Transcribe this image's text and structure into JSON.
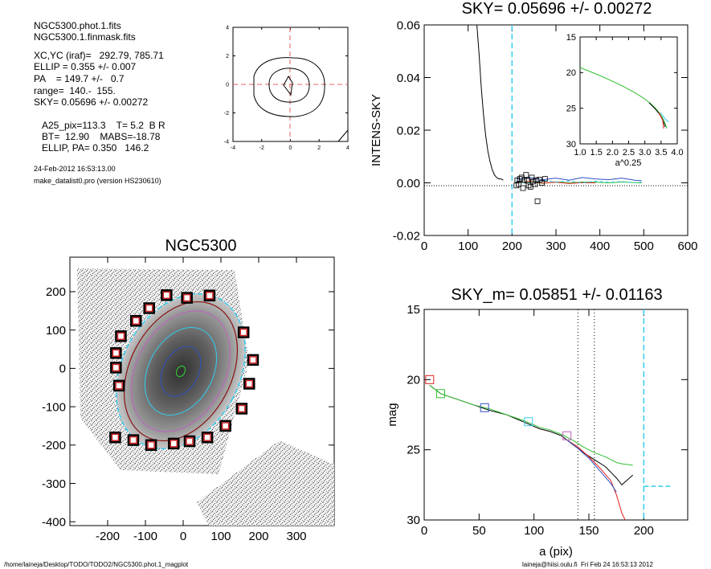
{
  "info": {
    "line1": "NGC5300.phot.1.fits",
    "line2": "NGC5300.1.finmask.fits",
    "line3": "XC,YC (iraf)=   292.79, 785.71",
    "line4": "ELLIP = 0.355 +/- 0.007",
    "line5": "PA    = 149.7 +/-   0.7",
    "line6": "range=  140.-  155.",
    "line7": "SKY= 0.05696 +/- 0.00272",
    "line8": "A25_pix=113.3    T= 5.2  B R",
    "line9": "BT=  12.90    MABS=-18.78",
    "line10": "ELLIP, PA= 0.350   146.2",
    "date": "24-Feb-2012 16:53:13.00",
    "version": "make_datalist0.pro (version HS230610)"
  },
  "footer": {
    "path": "/home/laineja/Desktop/TODO/TODO2/NGC5300.phot.1_magplot",
    "stamp": "laineja@hiisi.oulu.fi  Fri Feb 24 16:53:13 2012"
  },
  "colors": {
    "cyan_dash": "#33ccee",
    "red_dash": "#e06060",
    "blue": "#3050c0",
    "green": "#30c030",
    "red": "#e02020"
  },
  "chart_data": [
    {
      "type": "line",
      "name": "small contour plot",
      "title": "",
      "xlim": [
        -4,
        4
      ],
      "ylim": [
        -4,
        4
      ],
      "xticks": [
        "-4",
        "-2",
        "0",
        "2",
        "4"
      ],
      "yticks": [
        "-4",
        "-2",
        "0",
        "2",
        "4"
      ]
    },
    {
      "type": "line",
      "title": "SKY= 0.05696 +/- 0.00272",
      "xlabel": "",
      "ylabel": "INTENS-SKY",
      "xlim": [
        0,
        600
      ],
      "ylim": [
        -0.02,
        0.06
      ],
      "xticks": [
        "0",
        "100",
        "200",
        "300",
        "400",
        "500",
        "600"
      ],
      "yticks": [
        "-0.02",
        "0.00",
        "0.02",
        "0.04",
        "0.06"
      ],
      "series": [
        {
          "color": "#000000",
          "x": [
            120,
            125,
            130,
            135,
            140,
            145,
            150,
            155,
            160,
            165,
            170,
            175,
            180
          ],
          "y": [
            0.062,
            0.049,
            0.036,
            0.026,
            0.018,
            0.012,
            0.008,
            0.005,
            0.003,
            0.002,
            0.0015,
            0.0015,
            0.001
          ]
        },
        {
          "color": "#3050c0",
          "x": [
            210,
            240,
            270,
            300,
            330,
            360,
            390,
            420,
            450,
            480,
            495
          ],
          "y": [
            0.0015,
            0.002,
            0.0012,
            0.0018,
            0.001,
            0.002,
            0.0015,
            0.0012,
            0.0018,
            0.001,
            0.0008
          ]
        },
        {
          "color": "#30c030",
          "x": [
            210,
            240,
            270,
            300,
            330,
            360,
            390,
            420,
            450,
            480,
            495
          ],
          "y": [
            0.0,
            0.0005,
            -0.0002,
            0.0004,
            0.0,
            0.0003,
            0.0002,
            0.0,
            0.0003,
            0.0001,
            0.0
          ]
        },
        {
          "color": "#e02020",
          "x": [
            210,
            240,
            270,
            300,
            330,
            360,
            390
          ],
          "y": [
            0.0002,
            0.0006,
            -0.0001,
            0.0002,
            -0.0002,
            0.0001,
            0.0
          ]
        },
        {
          "color": "#33ccee",
          "x": [
            210,
            240,
            270,
            300,
            330,
            360,
            390,
            420,
            450,
            480,
            495
          ],
          "y": [
            0.0008,
            0.0,
            0.001,
            0.0003,
            0.0007,
            0.0,
            0.0006,
            0.0002,
            0.0005,
            0.0001,
            0.0003
          ]
        }
      ],
      "points": [
        [
          210,
          -0.001
        ],
        [
          212,
          0.001
        ],
        [
          215,
          -0.0005
        ],
        [
          218,
          0.0015
        ],
        [
          222,
          0.002
        ],
        [
          225,
          -0.002
        ],
        [
          228,
          0.001
        ],
        [
          232,
          0.003
        ],
        [
          235,
          0.0008
        ],
        [
          238,
          -0.001
        ],
        [
          242,
          -0.0015
        ],
        [
          245,
          0.002
        ],
        [
          248,
          0.0005
        ],
        [
          252,
          -0.0005
        ],
        [
          255,
          0.001
        ],
        [
          258,
          -0.007
        ],
        [
          262,
          0.0012
        ],
        [
          268,
          0.0
        ],
        [
          275,
          0.0015
        ]
      ],
      "vline_cyan": 200,
      "inset": {
        "xlabel": "a^0.25",
        "xlim": [
          1.0,
          4.0
        ],
        "ylim": [
          15,
          30
        ],
        "xticks": [
          "1.0",
          "1.5",
          "2.0",
          "2.5",
          "3.0",
          "3.5",
          "4.0"
        ],
        "yticks": [
          "15",
          "20",
          "25",
          "30"
        ]
      }
    },
    {
      "type": "image",
      "title": "NGC5300",
      "xlim": [
        -300,
        400
      ],
      "ylim": [
        -410,
        290
      ],
      "xticks": [
        "-200",
        "-100",
        "0",
        "100",
        "200",
        "300"
      ],
      "yticks": [
        "-400",
        "-300",
        "-200",
        "-100",
        "0",
        "100",
        "200"
      ],
      "mask_boxes": [
        [
          -44,
          191
        ],
        [
          10,
          184
        ],
        [
          70,
          190
        ],
        [
          -90,
          157
        ],
        [
          -125,
          124
        ],
        [
          -165,
          84
        ],
        [
          -178,
          40
        ],
        [
          -178,
          2
        ],
        [
          -170,
          -45
        ],
        [
          160,
          94
        ],
        [
          185,
          22
        ],
        [
          175,
          -40
        ],
        [
          155,
          -105
        ],
        [
          112,
          -150
        ],
        [
          64,
          -180
        ],
        [
          -180,
          -180
        ],
        [
          -132,
          -187
        ],
        [
          -85,
          -200
        ],
        [
          -25,
          -196
        ],
        [
          17,
          -190
        ]
      ]
    },
    {
      "type": "line",
      "title": "SKY_m=  0.05851 +/- 0.01163",
      "xlabel": "a (pix)",
      "ylabel": "mag",
      "xlim": [
        0,
        240
      ],
      "ylim": [
        30,
        15
      ],
      "xticks": [
        "0",
        "50",
        "100",
        "150",
        "200"
      ],
      "yticks": [
        "15",
        "20",
        "25",
        "30"
      ],
      "vlines_dotted": [
        140,
        155
      ],
      "vline_cyan": 200,
      "series": [
        {
          "color": "#000000",
          "x": [
            5,
            15,
            30,
            45,
            60,
            75,
            90,
            105,
            115,
            125,
            135,
            145,
            155,
            165,
            175,
            180,
            190
          ],
          "y": [
            20.4,
            21.0,
            21.4,
            21.8,
            22.2,
            22.5,
            23.0,
            23.5,
            23.7,
            24.0,
            24.6,
            25.2,
            25.7,
            26.2,
            27.0,
            27.5,
            26.8
          ]
        },
        {
          "color": "#30c030",
          "x": [
            5,
            15,
            30,
            45,
            60,
            75,
            90,
            105,
            115,
            125,
            135,
            145,
            155,
            165,
            175,
            180,
            190
          ],
          "y": [
            20.4,
            21.0,
            21.4,
            21.8,
            22.1,
            22.5,
            22.9,
            23.4,
            23.6,
            23.9,
            24.3,
            24.8,
            25.2,
            25.5,
            25.9,
            26.0,
            26.1
          ]
        },
        {
          "color": "#e02020",
          "x": [
            130,
            140,
            150,
            160,
            170,
            175,
            180,
            183
          ],
          "y": [
            24.3,
            24.8,
            25.5,
            26.3,
            27.2,
            28.2,
            29.5,
            30.0
          ]
        },
        {
          "color": "#3050c0",
          "x": [
            130,
            140,
            150,
            160,
            170,
            175
          ],
          "y": [
            24.3,
            24.9,
            25.6,
            26.5,
            27.4,
            28.0
          ]
        }
      ],
      "markers": [
        {
          "x": 5,
          "y": 20.0,
          "color": "#e02020"
        },
        {
          "x": 15,
          "y": 21.0,
          "color": "#30c030"
        },
        {
          "x": 55,
          "y": 22.0,
          "color": "#3050c0"
        },
        {
          "x": 95,
          "y": 23.0,
          "color": "#33ccee"
        },
        {
          "x": 130,
          "y": 24.0,
          "color": "#c060c0"
        }
      ],
      "sky_level": 27.6
    }
  ]
}
